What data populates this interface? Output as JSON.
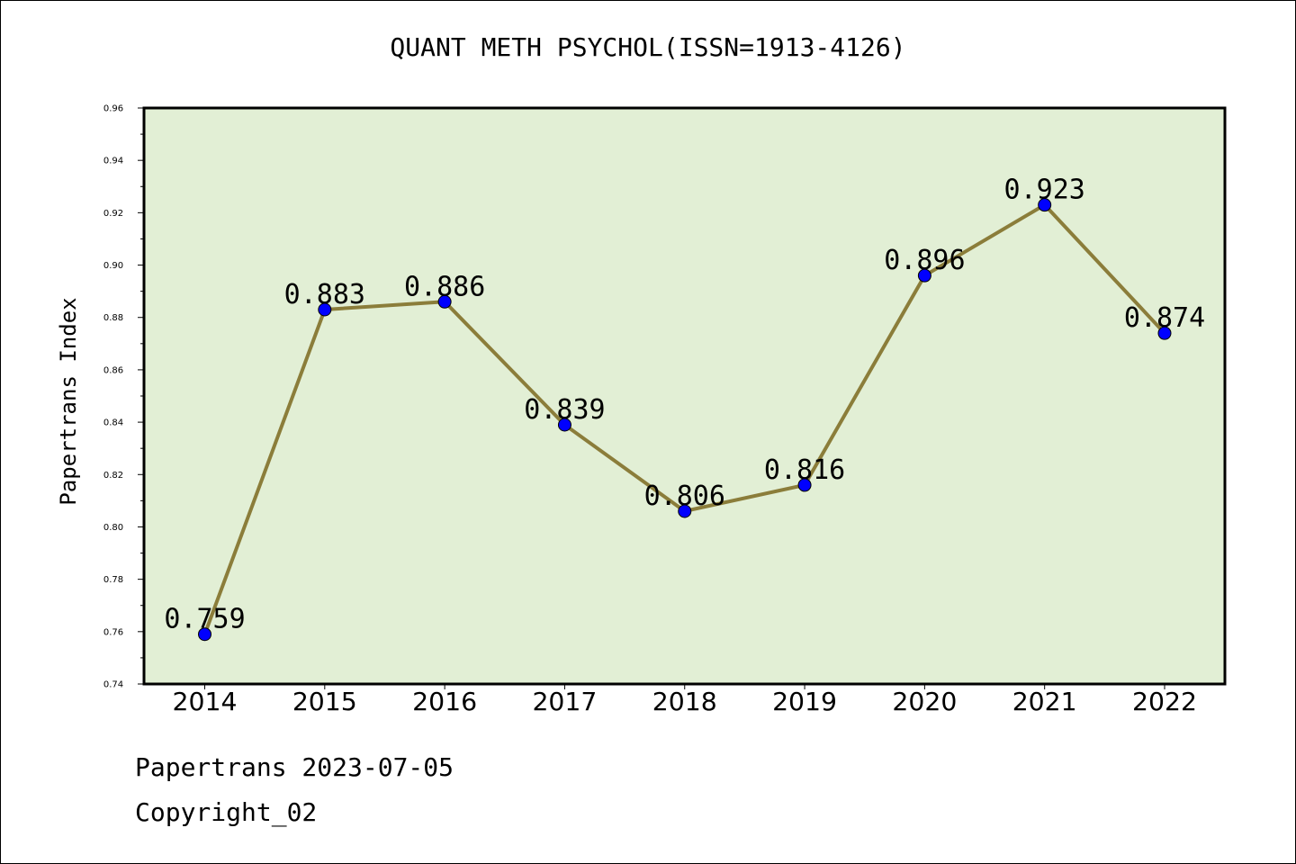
{
  "chart_data": {
    "type": "line",
    "title": "QUANT METH PSYCHOL(ISSN=1913-4126)",
    "ylabel": "Papertrans Index",
    "xlabel": "",
    "categories": [
      "2014",
      "2015",
      "2016",
      "2017",
      "2018",
      "2019",
      "2020",
      "2021",
      "2022"
    ],
    "values": [
      0.759,
      0.883,
      0.886,
      0.839,
      0.806,
      0.816,
      0.896,
      0.923,
      0.874
    ],
    "data_labels": [
      "0.759",
      "0.883",
      "0.886",
      "0.839",
      "0.806",
      "0.816",
      "0.896",
      "0.923",
      "0.874"
    ],
    "ylim": [
      0.74,
      0.96
    ],
    "yticks": [
      "0.74",
      "0.76",
      "0.78",
      "0.80",
      "0.82",
      "0.84",
      "0.86",
      "0.88",
      "0.90",
      "0.92",
      "0.94",
      "0.96"
    ],
    "grid": false,
    "colors": {
      "plot_background": "#e2efd5",
      "line": "#8b7d3a",
      "marker": "#0000ff"
    }
  },
  "footer": {
    "line1": "Papertrans 2023-07-05",
    "line2": "Copyright_02"
  }
}
